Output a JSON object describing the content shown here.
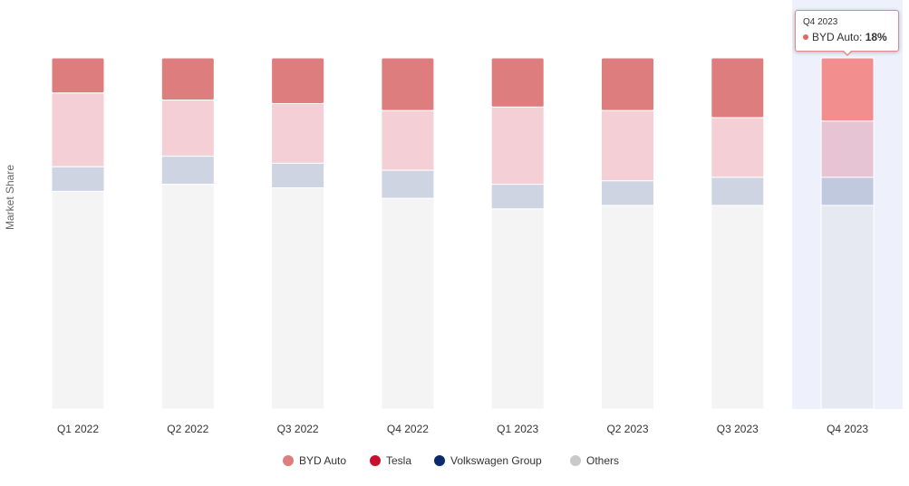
{
  "chart_data": {
    "type": "bar",
    "stacked": true,
    "percent": true,
    "ylabel": "Market Share",
    "xlabel": "",
    "categories": [
      "Q1 2022",
      "Q2 2022",
      "Q3 2022",
      "Q4 2022",
      "Q1 2023",
      "Q2 2023",
      "Q3 2023",
      "Q4 2023"
    ],
    "series": [
      {
        "name": "BYD Auto",
        "color": "#db7676",
        "values": [
          10,
          12,
          13,
          15,
          14,
          15,
          17,
          18
        ]
      },
      {
        "name": "Tesla",
        "color": "#c8102e",
        "values": [
          21,
          16,
          17,
          17,
          22,
          20,
          17,
          16
        ]
      },
      {
        "name": "Volkswagen Group",
        "color": "#0b2a6b",
        "values": [
          7,
          8,
          7,
          8,
          7,
          7,
          8,
          8
        ]
      },
      {
        "name": "Others",
        "color": "#c9c9c9",
        "values": [
          62,
          64,
          63,
          60,
          57,
          58,
          58,
          58
        ]
      }
    ],
    "ylim": [
      0,
      100
    ],
    "grid": false,
    "legend_position": "bottom",
    "highlighted_category_index": 7
  },
  "tooltip": {
    "title": "Q4 2023",
    "series_name": "BYD Auto",
    "separator": ": ",
    "value_label": "18%",
    "dot_color": "#e06666"
  }
}
